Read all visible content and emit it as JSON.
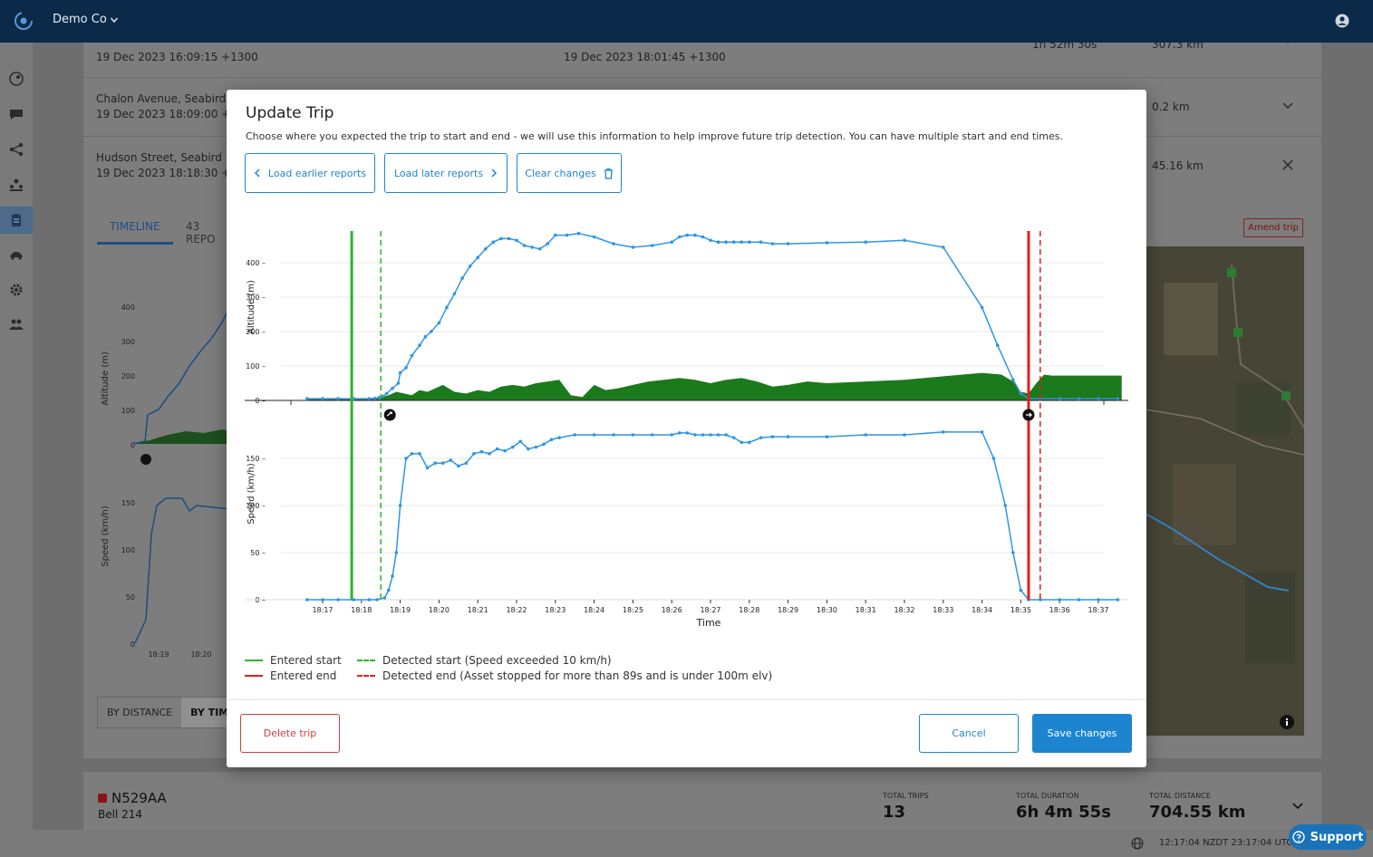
{
  "topbar": {
    "org_name": "Demo Co"
  },
  "background": {
    "rows": [
      {
        "location": "",
        "start_time": "19 Dec 2023 16:09:15 +1300",
        "end_time": "19 Dec 2023 18:01:45 +1300",
        "duration": "1h 52m 30s",
        "distance": "307.3 km"
      },
      {
        "location": "Chalon Avenue, Seabird",
        "start_time": "19 Dec 2023 18:09:00 +130",
        "end_time": "",
        "duration": "",
        "distance": "0.2 km"
      },
      {
        "location": "Hudson Street, Seabird",
        "start_time": "19 Dec 2023 18:18:30 +130",
        "end_time": "",
        "duration": "",
        "distance": "45.16 km"
      }
    ],
    "tabs": {
      "timeline": "TIMELINE",
      "reports": "43 REPO"
    },
    "amend_label": "Amend trip",
    "toggle": {
      "by_distance": "BY DISTANCE",
      "by_time": "BY TIME"
    },
    "mini_chart": {
      "altitude_label": "Altitude (m)",
      "speed_label": "Speed (km/h)",
      "alt_ticks": [
        "400",
        "300",
        "200",
        "100",
        "0"
      ],
      "speed_ticks": [
        "150",
        "100",
        "50",
        "0"
      ],
      "time_ticks": [
        "18:19",
        "18:20"
      ]
    },
    "asset": {
      "registration": "N529AA",
      "model": "Bell 214",
      "total_trips_label": "TOTAL TRIPS",
      "total_trips": "13",
      "total_duration_label": "TOTAL DURATION",
      "total_duration": "6h 4m 55s",
      "total_distance_label": "TOTAL DISTANCE",
      "total_distance": "704.55 km"
    },
    "footer_time": "12:17:04 NZDT 23:17:04 UTC",
    "support_label": "Support"
  },
  "modal": {
    "title": "Update Trip",
    "description": "Choose where you expected the trip to start and end - we will use this information to help improve future trip detection. You can have multiple start and end times.",
    "load_earlier": "Load earlier reports",
    "load_later": "Load later reports",
    "clear_changes": "Clear changes",
    "delete_trip": "Delete trip",
    "cancel": "Cancel",
    "save_changes": "Save changes",
    "legend": {
      "entered_start": "Entered start",
      "entered_end": "Entered end",
      "detected_start": "Detected start (Speed exceeded 10 km/h)",
      "detected_end": "Detected end (Asset stopped for more than 89s and is under 100m elv)"
    }
  },
  "colors": {
    "line": "#2f95e4",
    "terrain": "#1b7a1b",
    "start": "#2ab52a",
    "end": "#e02020",
    "accent": "#1d85d0",
    "danger": "#d43b3b"
  },
  "chart_data": {
    "type": "line",
    "x_label": "Time",
    "x_ticks": [
      "18:17",
      "18:18",
      "18:19",
      "18:20",
      "18:21",
      "18:22",
      "18:23",
      "18:24",
      "18:25",
      "18:26",
      "18:27",
      "18:28",
      "18:29",
      "18:30",
      "18:31",
      "18:32",
      "18:33",
      "18:34",
      "18:35",
      "18:36",
      "18:37"
    ],
    "altitude": {
      "ylabel": "Altitude (m)",
      "ylim": [
        0,
        500
      ],
      "yticks": [
        0,
        100,
        200,
        300,
        400
      ],
      "x": [
        16.6,
        17.0,
        17.4,
        17.8,
        18.2,
        18.35,
        18.45,
        18.55,
        18.65,
        18.8,
        18.95,
        19.0,
        19.15,
        19.3,
        19.5,
        19.65,
        19.8,
        20.0,
        20.2,
        20.4,
        20.6,
        20.8,
        21.0,
        21.2,
        21.4,
        21.6,
        21.8,
        22.0,
        22.2,
        22.4,
        22.6,
        22.8,
        23.0,
        23.3,
        23.6,
        24.0,
        24.5,
        25.0,
        25.5,
        26.0,
        26.2,
        26.4,
        26.6,
        26.8,
        27.0,
        27.2,
        27.4,
        27.6,
        27.8,
        28.0,
        28.3,
        28.6,
        29.0,
        30.0,
        31.0,
        32.0,
        33.0,
        34.0,
        34.4,
        34.8,
        35.0,
        35.2,
        35.5,
        36.0,
        36.5,
        37.0,
        37.5
      ],
      "y": [
        5,
        5,
        5,
        5,
        5,
        6,
        8,
        12,
        20,
        35,
        50,
        80,
        95,
        130,
        160,
        185,
        200,
        225,
        270,
        310,
        355,
        390,
        415,
        440,
        460,
        470,
        470,
        465,
        450,
        445,
        440,
        455,
        480,
        480,
        485,
        475,
        455,
        445,
        450,
        460,
        475,
        480,
        480,
        475,
        465,
        460,
        460,
        460,
        460,
        460,
        460,
        455,
        455,
        458,
        460,
        465,
        445,
        270,
        160,
        60,
        20,
        5,
        5,
        5,
        5,
        5,
        5
      ]
    },
    "speed": {
      "ylabel": "Speed (km/h)",
      "ylim": [
        0,
        180
      ],
      "yticks": [
        0,
        50,
        100,
        150
      ],
      "x": [
        16.6,
        17.0,
        17.4,
        17.8,
        18.2,
        18.4,
        18.6,
        18.7,
        18.8,
        18.9,
        19.0,
        19.15,
        19.3,
        19.5,
        19.7,
        19.9,
        20.1,
        20.3,
        20.5,
        20.7,
        20.9,
        21.1,
        21.3,
        21.5,
        21.7,
        21.9,
        22.1,
        22.3,
        22.5,
        22.7,
        22.9,
        23.1,
        23.5,
        24.0,
        24.5,
        25.0,
        25.5,
        26.0,
        26.2,
        26.4,
        26.6,
        26.8,
        27.0,
        27.2,
        27.4,
        27.6,
        27.8,
        28.0,
        28.3,
        28.6,
        29.0,
        30.0,
        31.0,
        32.0,
        33.0,
        34.0,
        34.3,
        34.6,
        34.8,
        35.0,
        35.2,
        35.5,
        36.0,
        36.5,
        37.0,
        37.5
      ],
      "y": [
        0,
        0,
        0,
        0,
        0,
        0,
        2,
        10,
        25,
        50,
        100,
        150,
        155,
        155,
        140,
        145,
        145,
        148,
        142,
        145,
        155,
        157,
        155,
        160,
        158,
        162,
        168,
        160,
        162,
        165,
        170,
        172,
        175,
        175,
        175,
        175,
        175,
        175,
        177,
        177,
        175,
        175,
        175,
        175,
        175,
        172,
        167,
        167,
        172,
        173,
        173,
        173,
        175,
        175,
        178,
        178,
        150,
        100,
        50,
        10,
        0,
        0,
        0,
        0,
        0,
        0
      ]
    },
    "terrain": {
      "x": [
        16.6,
        17.6,
        18.3,
        18.5,
        18.7,
        18.9,
        19.1,
        19.3,
        19.5,
        19.7,
        19.9,
        20.1,
        20.4,
        20.7,
        21.0,
        21.3,
        21.6,
        21.9,
        22.2,
        22.5,
        22.8,
        23.1,
        23.4,
        23.7,
        24.0,
        24.3,
        24.6,
        25.0,
        25.4,
        25.8,
        26.2,
        26.6,
        27.0,
        27.4,
        27.8,
        28.2,
        28.6,
        29.0,
        29.5,
        30.0,
        31.0,
        32.0,
        33.0,
        34.0,
        34.5,
        34.8,
        35.0,
        35.2,
        35.4,
        35.6,
        35.8,
        36.2,
        37.0,
        37.6
      ],
      "y": [
        5,
        5,
        5,
        10,
        15,
        25,
        20,
        15,
        30,
        25,
        35,
        45,
        25,
        20,
        30,
        25,
        40,
        45,
        40,
        50,
        55,
        60,
        15,
        10,
        45,
        30,
        35,
        45,
        55,
        60,
        65,
        60,
        50,
        60,
        65,
        55,
        40,
        45,
        55,
        50,
        55,
        60,
        70,
        80,
        75,
        55,
        25,
        20,
        50,
        75,
        72,
        72,
        72,
        72
      ]
    },
    "markers": {
      "entered_start": 17.75,
      "detected_start": 18.5,
      "entered_end": 35.2,
      "detected_end": 35.5
    }
  }
}
